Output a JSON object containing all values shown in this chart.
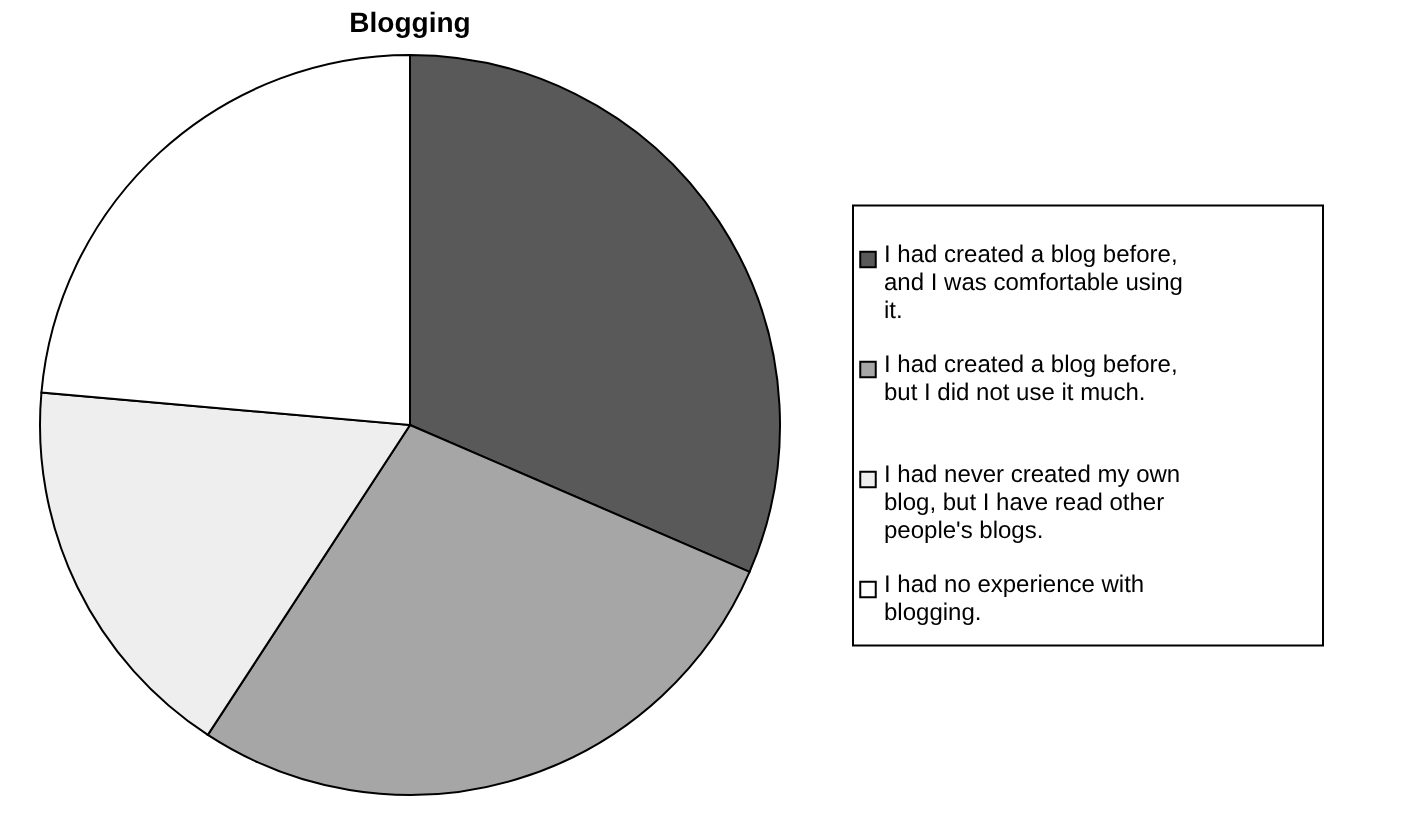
{
  "chart_data": {
    "type": "pie",
    "title": "Blogging",
    "categories": [
      "I had created a blog before, and I was comfortable using it.",
      "I had created a blog before, but I did not use it much.",
      "I had never created my own blog, but I have read other people's blogs.",
      "I had no experience with blogging."
    ],
    "values": [
      31.5,
      27.7,
      17.2,
      23.6
    ],
    "colors": [
      "#595959",
      "#a6a6a6",
      "#eeeeee",
      "#ffffff"
    ],
    "legend": "right"
  }
}
